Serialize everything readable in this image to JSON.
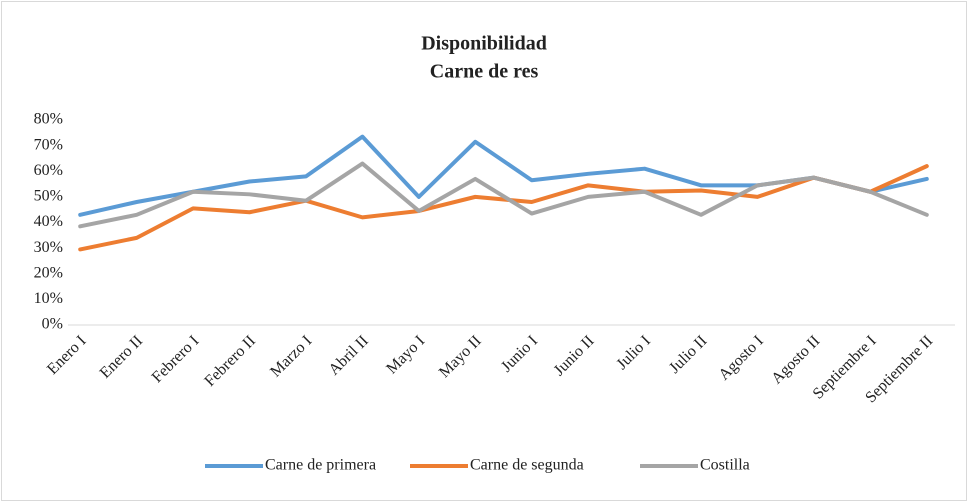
{
  "chart_data": {
    "type": "line",
    "title": [
      "Disponibilidad",
      "Carne de res"
    ],
    "categories": [
      "Enero I",
      "Enero II",
      "Febrero I",
      "Febrero II",
      "Marzo I",
      "Abril II",
      "Mayo I",
      "Mayo II",
      "Junio I",
      "Junio II",
      "Julio I",
      "Julio II",
      "Agosto I",
      "Agosto II",
      "Septiembre I",
      "Septiembre II"
    ],
    "series": [
      {
        "name": "Carne de primera",
        "color": "#5b9bd5",
        "values": [
          43,
          48,
          52,
          56,
          58,
          73.5,
          50,
          71.5,
          56.5,
          59,
          61,
          54.5,
          54.5,
          57.5,
          52,
          57
        ]
      },
      {
        "name": "Carne de segunda",
        "color": "#ed7d31",
        "values": [
          29.5,
          34,
          45.5,
          44,
          48.5,
          42,
          44.5,
          50,
          48,
          54.5,
          52,
          52.5,
          50,
          57.5,
          52,
          62
        ]
      },
      {
        "name": "Costilla",
        "color": "#a5a5a5",
        "values": [
          38.5,
          43,
          52,
          51,
          48.5,
          63,
          44.5,
          57,
          43.5,
          50,
          52,
          43,
          54.5,
          57.5,
          52,
          43
        ]
      }
    ],
    "ylim": [
      0,
      80
    ],
    "yticks": [
      {
        "value": 0,
        "label": "0%"
      },
      {
        "value": 10,
        "label": "10%"
      },
      {
        "value": 20,
        "label": "20%"
      },
      {
        "value": 30,
        "label": "30%"
      },
      {
        "value": 40,
        "label": "40%"
      },
      {
        "value": 50,
        "label": "50%"
      },
      {
        "value": 60,
        "label": "60%"
      },
      {
        "value": 70,
        "label": "70%"
      },
      {
        "value": 80,
        "label": "80%"
      }
    ],
    "legend": "bottom"
  }
}
